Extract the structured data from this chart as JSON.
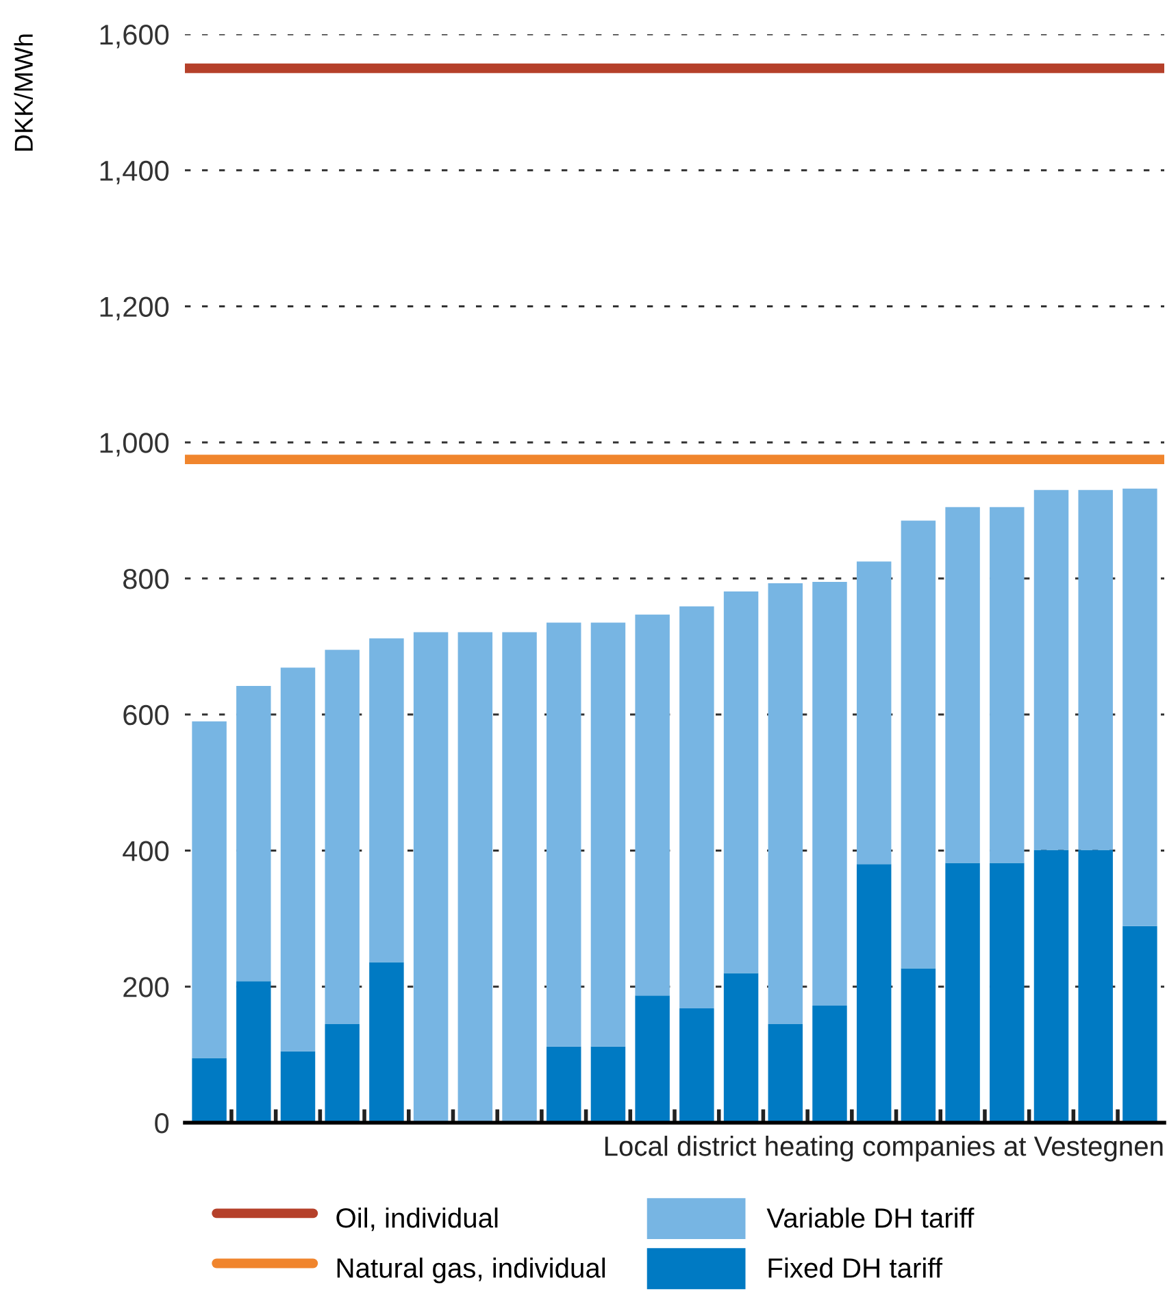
{
  "chart_data": {
    "type": "bar",
    "stacked": true,
    "xlabel": "Local district heating companies at Vestegnen",
    "ylabel": "DKK/MWh",
    "categories": [
      null,
      null,
      null,
      null,
      null,
      null,
      null,
      null,
      null,
      null,
      null,
      null,
      null,
      null,
      null,
      null,
      null,
      null,
      null,
      null,
      null,
      null
    ],
    "series": [
      {
        "name": "Fixed DH tariff",
        "color": "#007ac3",
        "values": [
          95,
          208,
          105,
          145,
          236,
          0,
          0,
          0,
          112,
          112,
          187,
          168,
          220,
          145,
          172,
          380,
          227,
          382,
          382,
          401,
          401,
          289
        ]
      },
      {
        "name": "Variable DH tariff",
        "color": "#77b5e3",
        "values": [
          495,
          434,
          564,
          550,
          476,
          721,
          721,
          721,
          623,
          623,
          560,
          591,
          561,
          648,
          623,
          445,
          658,
          523,
          523,
          529,
          529,
          643
        ]
      }
    ],
    "ref_lines": [
      {
        "axis": "y",
        "value": 1550,
        "label": "Oil, individual",
        "color": "#b5402a"
      },
      {
        "axis": "y",
        "value": 975,
        "label": "Natural gas, individual",
        "color": "#f0852d"
      }
    ],
    "ylim": [
      0,
      1600
    ],
    "yticks": [
      {
        "value": 0,
        "label": "0"
      },
      {
        "value": 200,
        "label": "200"
      },
      {
        "value": 400,
        "label": "400"
      },
      {
        "value": 600,
        "label": "600"
      },
      {
        "value": 800,
        "label": "800"
      },
      {
        "value": 1000,
        "label": "1,000"
      },
      {
        "value": 1200,
        "label": "1,200"
      },
      {
        "value": 1400,
        "label": "1,400"
      },
      {
        "value": 1600,
        "label": "1,600"
      }
    ],
    "grid": "y",
    "legend": "bottom"
  }
}
